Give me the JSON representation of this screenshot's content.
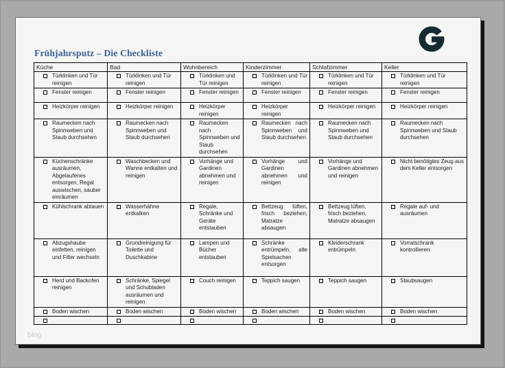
{
  "document": {
    "title": "Frühjahrsputz – Die Checkliste",
    "watermark": "blog",
    "logo_letter": "G"
  },
  "colors": {
    "canvas_bg": "#a9a9a9",
    "page_bg": "#f5f5f3",
    "page_shadow": "#141414",
    "title_blue": "#365f91",
    "logo_navy": "#142b33",
    "table_border": "#000000"
  },
  "checklist": {
    "columns": [
      "Küche",
      "Bad",
      "Wohnbereich",
      "Kinderzimmer",
      "Schlafzimmer",
      "Keller"
    ],
    "rows": [
      [
        "Türklinken und Tür reinigen",
        "Türklinken und Tür reinigen",
        "Türklinken und Tür reinigen",
        "Türklinken und Tür reinigen",
        "Türklinken und Tür reinigen",
        "Türklinken und Tür reinigen"
      ],
      [
        "Fenster reinigen",
        "Fenster reinigen",
        "Fenster reinigen",
        "Fenster reinigen",
        "Fenster reinigen",
        "Fenster reinigen"
      ],
      [
        "Heizkörper reinigen",
        "Heizkörper reinigen",
        "Heizkörper reinigen",
        "Heizkörper reinigen",
        "Heizkörper reinigen",
        "Heizkörper reinigen"
      ],
      [
        "Raumecken nach Spinnweben und Staub durchsehen",
        "Raumecken nach Spinnweben und Staub durchsehen",
        "Raumecken nach Spinnweben und Staub durchsehen",
        "Raumecken nach Spinnweben und Staub durchsehen",
        "Raumecken nach Spinnweben und Staub durchsehen",
        "Raumecken nach Spinnweben und Staub durchsehen"
      ],
      [
        "Küchenschränke ausräumen, Abgelaufenes entsorgen, Regal auswischen, sauber einräumen",
        "Waschbecken und Wanne entkalten und reinigen",
        "Vorhänge und Gardinen abnehmen und reinigen",
        "Vorhänge und Gardinen abnehmen und reinigen",
        "Vorhänge und Gardinen abnehmen und reinigen",
        "Nicht benötigtes Zeug aus dem Keller entsorgen"
      ],
      [
        "Kühlschrank abtauen",
        "Wasserhähne entkalken",
        "Regale, Schränke und Geräte entstauben",
        "Bettzeug lüften, frisch beziehen, Matratze absaugen",
        "Bettzeug lüften, frisch beziehen, Matratze absaugen",
        "Regale auf- und ausräumen"
      ],
      [
        "Abzugshaube einfetten, reinigen und Filter wechseln",
        "Grundreinigung für Toilette und Duschkabine",
        "Lampen und Bücher entstauben",
        "Schränke entrümpeln, alte Spielsachen entsorgen",
        "Kleiderschrank entrümpeln",
        "Vorratschrank kontrollieren"
      ],
      [
        "Herd und Backofen reinigen",
        "Schränke, Spiegel und Schubladen ausräumen und reinigen",
        "Couch reinigen",
        "Teppich saugen",
        "Teppich saugen",
        "Staubsaugen"
      ],
      [
        "Boden wischen",
        "Boden wischen",
        "Boden wischen",
        "Boden wischen",
        "Boden wischen",
        "Boden wischen"
      ],
      [
        "",
        "",
        "",
        "",
        "",
        ""
      ]
    ]
  }
}
